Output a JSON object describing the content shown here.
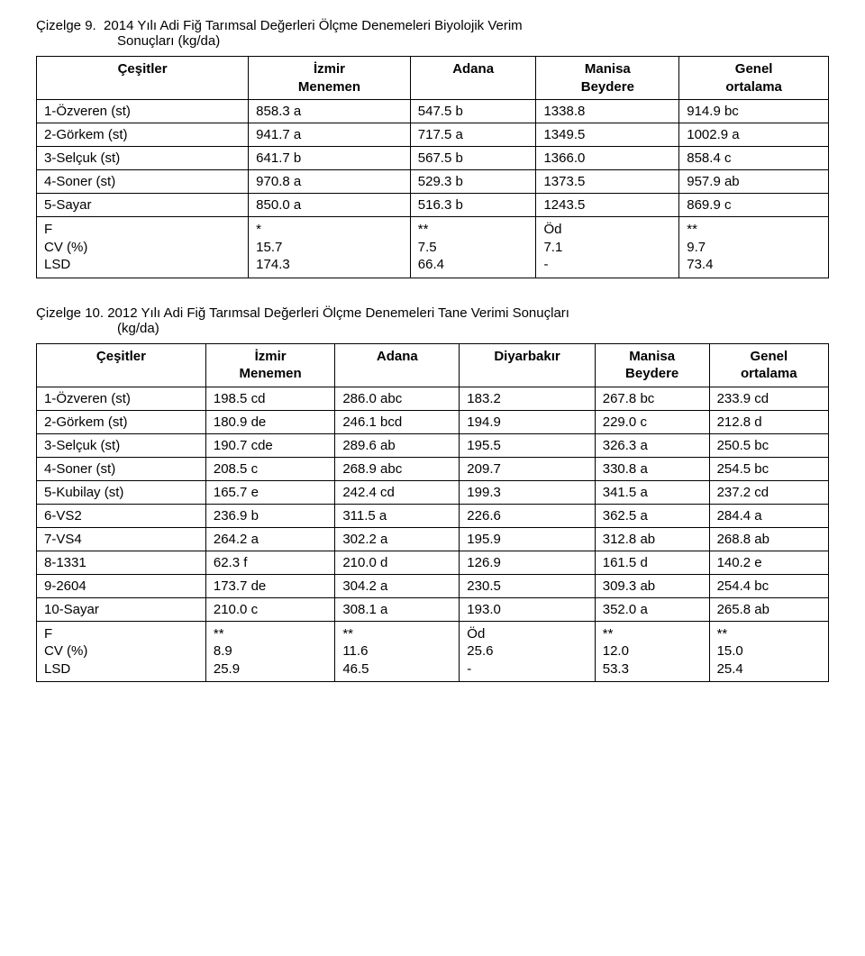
{
  "table9": {
    "caption_line1_left": "Çizelge 9.",
    "caption_line1_rest": "2014 Yılı Adi Fiğ Tarımsal Değerleri Ölçme Denemeleri Biyolojik Verim",
    "caption_line2": "Sonuçları (kg/da)",
    "headers": [
      "Çeşitler",
      "İzmir\nMenemen",
      "Adana",
      "Manisa\nBeydere",
      "Genel\nortalama"
    ],
    "rows": [
      [
        "1-Özveren (st)",
        "858.3 a",
        "547.5 b",
        "1338.8",
        "914.9 bc"
      ],
      [
        "2-Görkem  (st)",
        "941.7 a",
        "717.5 a",
        "1349.5",
        "1002.9 a"
      ],
      [
        "3-Selçuk  (st)",
        "641.7 b",
        "567.5 b",
        "1366.0",
        "858.4 c"
      ],
      [
        "4-Soner  (st)",
        "970.8 a",
        "529.3 b",
        "1373.5",
        "957.9 ab"
      ],
      [
        "5-Sayar",
        "850.0 a",
        "516.3 b",
        "1243.5",
        "869.9 c"
      ],
      [
        "F\nCV (%)\nLSD",
        "*\n15.7\n174.3",
        "**\n7.5\n66.4",
        "Öd\n7.1\n-",
        "**\n9.7\n73.4"
      ]
    ]
  },
  "table10": {
    "caption_line1_left": "Çizelge 10.",
    "caption_line1_rest": "2012 Yılı Adi Fiğ Tarımsal Değerleri Ölçme Denemeleri Tane Verimi Sonuçları",
    "caption_line2": "(kg/da)",
    "headers": [
      "Çeşitler",
      "İzmir\nMenemen",
      "Adana",
      "Diyarbakır",
      "Manisa\nBeydere",
      "Genel\nortalama"
    ],
    "rows": [
      [
        "1-Özveren (st)",
        "198.5 cd",
        "286.0 abc",
        "183.2",
        "267.8 bc",
        "233.9 cd"
      ],
      [
        "2-Görkem  (st)",
        "180.9 de",
        "246.1 bcd",
        "194.9",
        "229.0 c",
        "212.8 d"
      ],
      [
        "3-Selçuk    (st)",
        "190.7 cde",
        "289.6 ab",
        "195.5",
        "326.3 a",
        "250.5 bc"
      ],
      [
        "4-Soner     (st)",
        "208.5 c",
        "268.9 abc",
        "209.7",
        "330.8 a",
        "254.5 bc"
      ],
      [
        "5-Kubilay (st)",
        "165.7 e",
        "242.4 cd",
        "199.3",
        "341.5 a",
        "237.2 cd"
      ],
      [
        "6-VS2",
        "236.9 b",
        "311.5 a",
        "226.6",
        "362.5 a",
        "284.4 a"
      ],
      [
        "7-VS4",
        "264.2 a",
        "302.2 a",
        "195.9",
        "312.8 ab",
        "268.8 ab"
      ],
      [
        "8-1331",
        "62.3 f",
        "210.0 d",
        "126.9",
        "161.5 d",
        "140.2 e"
      ],
      [
        "9-2604",
        "173.7 de",
        "304.2 a",
        "230.5",
        "309.3 ab",
        "254.4 bc"
      ],
      [
        "10-Sayar",
        "210.0 c",
        "308.1 a",
        "193.0",
        "352.0 a",
        "265.8 ab"
      ],
      [
        "F\nCV (%)\nLSD",
        "**\n8.9\n25.9",
        "**\n11.6\n46.5",
        "Öd\n25.6\n-",
        "**\n12.0\n53.3",
        "**\n15.0\n25.4"
      ]
    ]
  }
}
